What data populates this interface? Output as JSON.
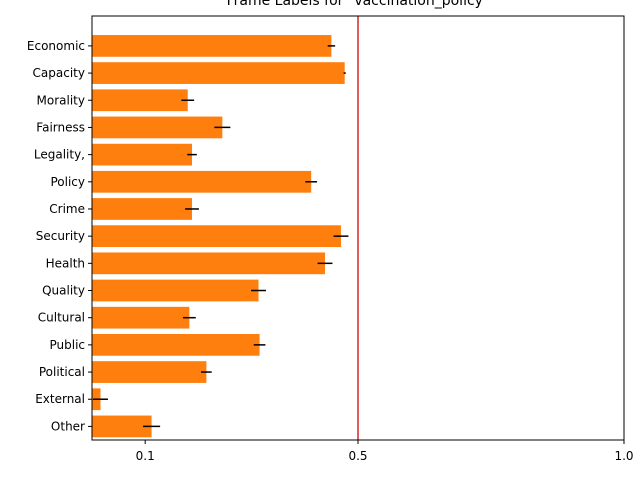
{
  "chart_data": {
    "type": "bar",
    "orientation": "horizontal",
    "title": "Frame Labels for \"vaccination_policy\"",
    "xlabel": "",
    "ylabel": "",
    "xlim": [
      0.0,
      1.0
    ],
    "x_ticks": [
      0.1,
      0.5,
      1.0
    ],
    "x_tick_labels": [
      "0.1",
      "0.5",
      "1.0"
    ],
    "grid": false,
    "legend": "none",
    "categories": [
      "Economic",
      "Capacity",
      "Morality",
      "Fairness",
      "Legality,",
      "Policy",
      "Crime",
      "Security",
      "Health",
      "Quality",
      "Cultural",
      "Public",
      "Political",
      "External",
      "Other"
    ],
    "values": [
      0.45,
      0.475,
      0.18,
      0.245,
      0.188,
      0.412,
      0.188,
      0.468,
      0.438,
      0.313,
      0.183,
      0.315,
      0.215,
      0.016,
      0.112
    ],
    "errors": [
      0.007,
      0.002,
      0.012,
      0.015,
      0.009,
      0.011,
      0.013,
      0.014,
      0.014,
      0.014,
      0.012,
      0.011,
      0.01,
      0.014,
      0.016
    ],
    "reference_line": {
      "x": 0.5,
      "color": "#d62728"
    },
    "bar_color": "#ff7f0e",
    "error_color": "#000000"
  }
}
